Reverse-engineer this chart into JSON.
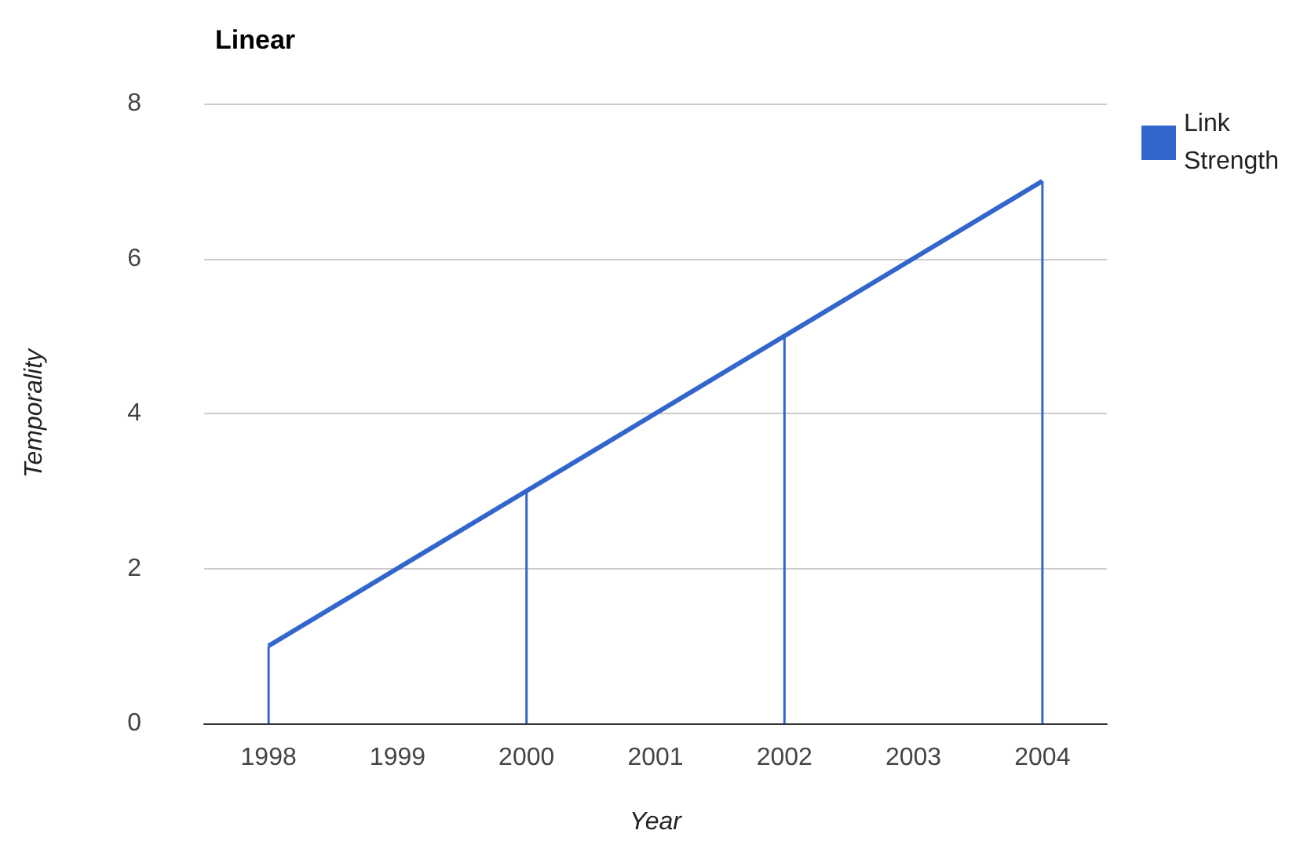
{
  "chart_data": {
    "type": "line",
    "title": "Linear",
    "xlabel": "Year",
    "ylabel": "Temporality",
    "categories": [
      "1998",
      "1999",
      "2000",
      "2001",
      "2002",
      "2003",
      "2004"
    ],
    "series": [
      {
        "name": "Link Strength",
        "color": "#3366cc",
        "values": [
          1,
          2,
          3,
          4,
          5,
          6,
          7
        ]
      },
      {
        "type": "bar",
        "color": "#3366cc",
        "values": [
          1,
          null,
          3,
          null,
          5,
          null,
          7
        ]
      }
    ],
    "ylim": [
      0,
      8
    ],
    "yticks": [
      0,
      2,
      4,
      6,
      8
    ],
    "grid": "y",
    "legend": "top right",
    "marker": "none"
  }
}
